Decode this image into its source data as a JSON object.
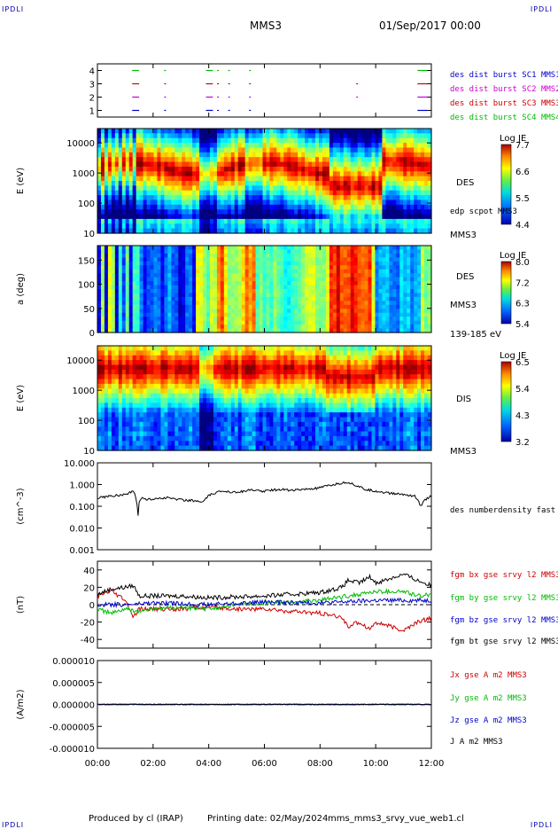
{
  "header": {
    "spacecraft": "MMS3",
    "date": "01/Sep/2017 00:00",
    "corner_left": "IPDLI",
    "corner_right": "IPDLI"
  },
  "footer": {
    "produced": "Produced by cl (IRAP)",
    "printing": "Printing date: 02/May/2024",
    "script": "mms_mms3_srvy_vue_web1.cl",
    "corner_left": "IPDLI",
    "corner_right": "IPDLI"
  },
  "colors": {
    "red": "#cc0000",
    "green": "#00bb00",
    "blue": "#0000cc",
    "magenta": "#cc00cc",
    "black": "#000000"
  },
  "chart_data": [
    {
      "id": "burst",
      "type": "scatter",
      "x_range": [
        0,
        12
      ],
      "ylim": [
        0.5,
        4.5
      ],
      "yticks": [
        1,
        2,
        3,
        4
      ],
      "legend": [
        {
          "name": "des dist burst SC1 MMS1",
          "color": "#0000cc",
          "level": 1
        },
        {
          "name": "des dist burst SC2 MMS2",
          "color": "#cc00cc",
          "level": 2
        },
        {
          "name": "des dist burst SC3 MMS3",
          "color": "#cc0000",
          "level": 3
        },
        {
          "name": "des dist burst SC4 MMS4",
          "color": "#00bb00",
          "level": 4
        }
      ],
      "intervals": [
        [
          1.25,
          1.5
        ],
        [
          2.4,
          2.45
        ],
        [
          3.9,
          4.15
        ],
        [
          4.3,
          4.35
        ],
        [
          4.7,
          4.75
        ],
        [
          5.45,
          5.5
        ],
        [
          11.5,
          11.85
        ]
      ],
      "extra": [
        {
          "level": 3,
          "range": [
            9.3,
            9.35
          ]
        },
        {
          "level": 2,
          "range": [
            9.3,
            9.35
          ]
        }
      ]
    },
    {
      "id": "des-energy",
      "type": "heatmap",
      "ylabel": "E (eV)",
      "yscale": "log",
      "ylim": [
        10,
        30000
      ],
      "yticks": [
        10,
        100,
        1000,
        10000
      ],
      "ytick_labels": [
        "10",
        "100",
        "1000",
        "10000"
      ],
      "right_labels": [
        "DES",
        "edp scpot MMS3",
        "MMS3"
      ],
      "colorbar": {
        "label": "Log JE",
        "range": [
          4.4,
          7.7
        ],
        "ticks": [
          "7.7",
          "6.6",
          "5.5",
          "4.4"
        ]
      }
    },
    {
      "id": "des-pitch",
      "type": "heatmap",
      "ylabel": "a (deg)",
      "ylim": [
        0,
        180
      ],
      "yticks": [
        0,
        50,
        100,
        150
      ],
      "ytick_labels": [
        "0",
        "50",
        "100",
        "150"
      ],
      "right_labels": [
        "DES",
        "MMS3",
        "139-185 eV"
      ],
      "colorbar": {
        "label": "Log JE",
        "range": [
          5.4,
          8.0
        ],
        "ticks": [
          "8.0",
          "7.2",
          "6.3",
          "5.4"
        ]
      }
    },
    {
      "id": "dis-energy",
      "type": "heatmap",
      "ylabel": "E (eV)",
      "yscale": "log",
      "ylim": [
        10,
        30000
      ],
      "yticks": [
        10,
        100,
        1000,
        10000
      ],
      "ytick_labels": [
        "10",
        "100",
        "1000",
        "10000"
      ],
      "right_labels": [
        "DIS",
        "MMS3"
      ],
      "colorbar": {
        "label": "Log JE",
        "range": [
          3.2,
          6.5
        ],
        "ticks": [
          "6.5",
          "5.4",
          "4.3",
          "3.2"
        ]
      }
    },
    {
      "id": "density",
      "type": "line",
      "ylabel": "(cm^-3)",
      "yscale": "log",
      "ylim": [
        0.001,
        10
      ],
      "yticks": [
        0.001,
        0.01,
        0.1,
        1,
        10
      ],
      "ytick_labels": [
        "0.001",
        "0.010",
        "0.100",
        "1.000",
        "10.000"
      ],
      "series": [
        {
          "name": "des numberdensity fast M",
          "color": "#000000",
          "x": [
            0,
            0.5,
            1.0,
            1.3,
            1.4,
            1.45,
            1.5,
            1.6,
            1.8,
            2.0,
            2.5,
            3.0,
            3.5,
            3.8,
            4.0,
            4.2,
            4.5,
            5.0,
            5.5,
            6.0,
            6.5,
            7.0,
            7.5,
            8.0,
            8.5,
            9.0,
            9.3,
            9.6,
            10.0,
            10.5,
            11.0,
            11.4,
            11.6,
            11.8,
            12.0
          ],
          "y": [
            0.25,
            0.3,
            0.35,
            0.5,
            0.2,
            0.002,
            0.15,
            0.25,
            0.2,
            0.22,
            0.25,
            0.2,
            0.18,
            0.15,
            0.3,
            0.4,
            0.5,
            0.45,
            0.55,
            0.5,
            0.6,
            0.55,
            0.6,
            0.7,
            1.0,
            1.3,
            0.9,
            0.6,
            0.5,
            0.4,
            0.35,
            0.3,
            0.1,
            0.2,
            0.3
          ]
        }
      ]
    },
    {
      "id": "magnetic-field",
      "type": "line",
      "ylabel": "(nT)",
      "ylim": [
        -50,
        50
      ],
      "yticks": [
        -40,
        -20,
        0,
        20,
        40
      ],
      "ytick_labels": [
        "-40",
        "-20",
        "0",
        "20",
        "40"
      ],
      "series": [
        {
          "name": "fgm bx gse srvy l2 MMS3",
          "color": "#cc0000",
          "x": [
            0,
            0.5,
            1.0,
            1.3,
            1.5,
            2.0,
            3.0,
            4.0,
            5.0,
            6.0,
            7.0,
            8.0,
            8.8,
            9.0,
            9.4,
            9.8,
            10.0,
            10.5,
            11.0,
            11.5,
            12.0
          ],
          "y": [
            10,
            15,
            5,
            -15,
            -5,
            -5,
            -5,
            -3,
            -5,
            -5,
            -8,
            -10,
            -15,
            -25,
            -20,
            -28,
            -20,
            -25,
            -30,
            -20,
            -15
          ]
        },
        {
          "name": "fgm by gse srvy l2 MMS3",
          "color": "#00bb00",
          "x": [
            0,
            0.5,
            1.0,
            1.5,
            2.0,
            3.0,
            4.0,
            5.0,
            6.0,
            7.0,
            8.0,
            9.0,
            10.0,
            11.0,
            11.5,
            12.0
          ],
          "y": [
            -5,
            -10,
            -5,
            -8,
            -5,
            -3,
            -5,
            0,
            2,
            3,
            5,
            10,
            15,
            15,
            10,
            12
          ]
        },
        {
          "name": "fgm bz gse srvy l2 MMS3",
          "color": "#0000cc",
          "x": [
            0,
            1.0,
            2.0,
            4.0,
            6.0,
            8.0,
            10.0,
            12.0
          ],
          "y": [
            0,
            0,
            2,
            0,
            3,
            2,
            5,
            5
          ]
        },
        {
          "name": "fgm bt gse srvy l2 MMS3",
          "color": "#000000",
          "x": [
            0,
            0.5,
            1.0,
            1.3,
            1.5,
            2.0,
            3.0,
            4.0,
            5.0,
            6.0,
            7.0,
            8.0,
            8.8,
            9.0,
            9.4,
            9.8,
            10.0,
            10.5,
            11.0,
            11.5,
            12.0
          ],
          "y": [
            12,
            18,
            20,
            22,
            10,
            10,
            10,
            8,
            9,
            10,
            12,
            14,
            20,
            28,
            25,
            32,
            25,
            30,
            35,
            28,
            22
          ]
        }
      ]
    },
    {
      "id": "current",
      "type": "line",
      "ylabel": "(A/m2)",
      "ylim": [
        -1e-05,
        1e-05
      ],
      "yticks": [
        -1e-05,
        -5e-06,
        0,
        5e-06,
        1e-05
      ],
      "ytick_labels": [
        "-0.000010",
        "-0.000005",
        "0.000000",
        "0.000005",
        "0.000010"
      ],
      "series": [
        {
          "name": "Jx gse A m2 MMS3",
          "color": "#cc0000",
          "x": [
            0,
            12
          ],
          "y": [
            0,
            0
          ]
        },
        {
          "name": "Jy gse A m2 MMS3",
          "color": "#00bb00",
          "x": [
            0,
            12
          ],
          "y": [
            0,
            0
          ]
        },
        {
          "name": "Jz gse A m2 MMS3",
          "color": "#0000cc",
          "x": [
            0,
            12
          ],
          "y": [
            0,
            0
          ]
        },
        {
          "name": "J A m2 MMS3",
          "color": "#000000",
          "x": [
            0,
            12
          ],
          "y": [
            0,
            0
          ]
        }
      ]
    }
  ],
  "time_axis": {
    "range": [
      0,
      12
    ],
    "ticks": [
      0,
      2,
      4,
      6,
      8,
      10,
      12
    ],
    "tick_labels": [
      "00:00",
      "02:00",
      "04:00",
      "06:00",
      "08:00",
      "10:00",
      "12:00"
    ]
  }
}
